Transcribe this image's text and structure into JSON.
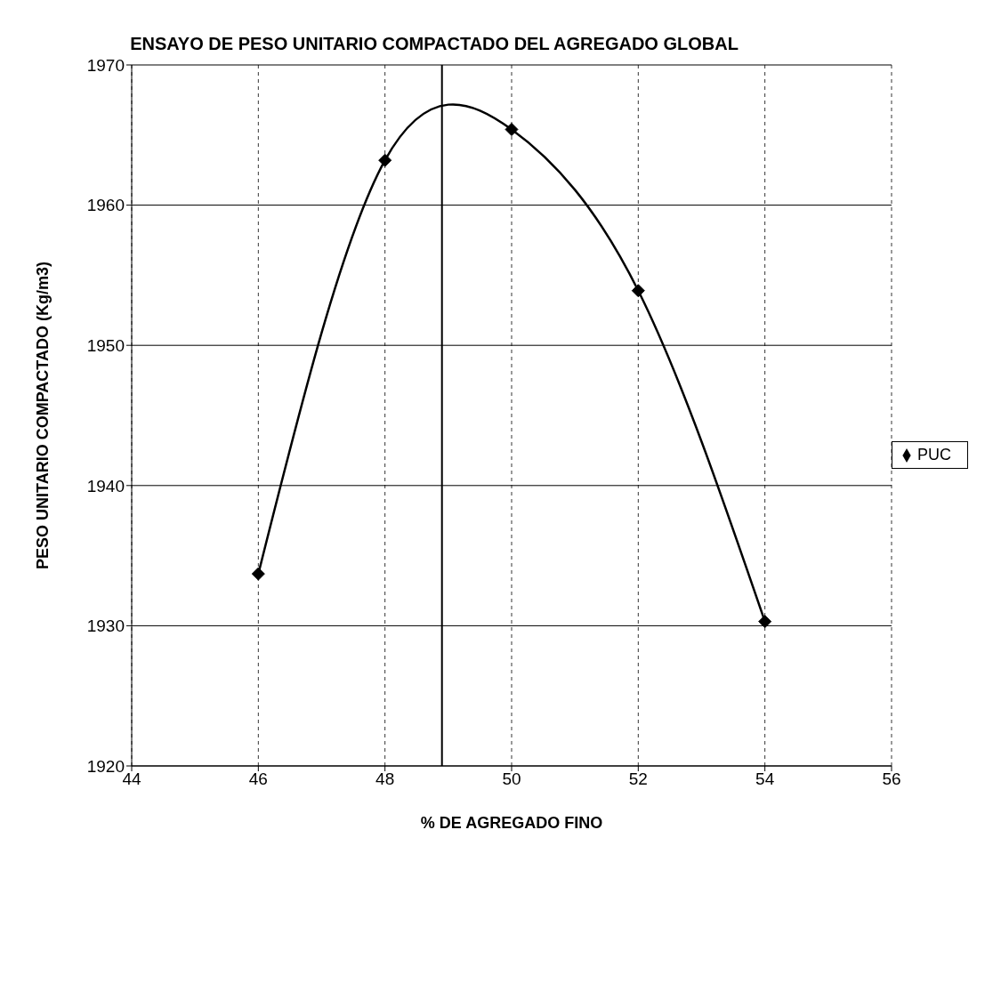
{
  "chart_data": {
    "type": "line",
    "title": "ENSAYO DE PESO UNITARIO COMPACTADO DEL AGREGADO GLOBAL",
    "xlabel": "% DE AGREGADO FINO",
    "ylabel": "PESO UNITARIO COMPACTADO (Kg/m3)",
    "x": [
      46,
      48,
      50,
      52,
      54
    ],
    "series": [
      {
        "name": "PUC",
        "color": "#000000",
        "values": [
          1933.7,
          1963.2,
          1965.4,
          1953.9,
          1930.3
        ]
      }
    ],
    "xlim": [
      44,
      56
    ],
    "xticks": [
      44,
      46,
      48,
      50,
      52,
      54,
      56
    ],
    "ylim": [
      1920,
      1970
    ],
    "yticks": [
      1920,
      1930,
      1940,
      1950,
      1960,
      1970
    ],
    "grid": true,
    "legend": "right",
    "marker": "diamond",
    "line_style": "solid",
    "ref_lines": [
      {
        "axis": "x",
        "value": 48.9,
        "color": "#000000"
      }
    ]
  }
}
